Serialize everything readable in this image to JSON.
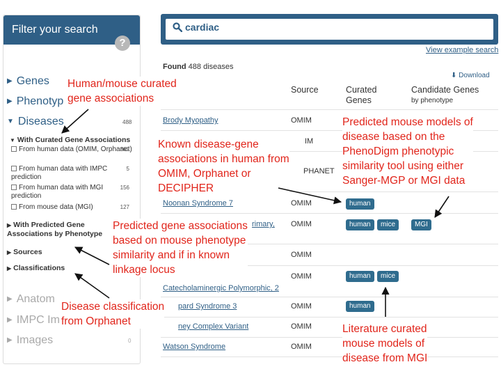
{
  "sidebar": {
    "title": "Filter your search",
    "help_glyph": "?",
    "facets": {
      "genes": "Genes",
      "phenotypes": "Phenotyp",
      "diseases": "Diseases",
      "diseases_count": "488",
      "anatomy": "Anatom",
      "impc_images": "IMPC Im",
      "images": "Images",
      "images_count": "0"
    },
    "curated_heading": "With Curated Gene Associations",
    "curated_options": [
      {
        "label": "From human data (OMIM, Orphanet)",
        "count": "362"
      },
      {
        "label": "From human data with IMPC prediction",
        "count": "5"
      },
      {
        "label": "From human data with MGI prediction",
        "count": "156"
      },
      {
        "label": "From mouse data (MGI)",
        "count": "127"
      }
    ],
    "predicted_heading": "With Predicted Gene Associations by Phenotype",
    "sources_label": "Sources",
    "classifications_label": "Classifications"
  },
  "search": {
    "query": "cardiac",
    "view_example": "View example search"
  },
  "results": {
    "found_prefix": "Found",
    "found_count": "488 diseases",
    "download_label": "Download"
  },
  "table": {
    "headers": {
      "source": "Source",
      "curated_genes": "Curated Genes",
      "candidate_genes": "Candidate Genes",
      "candidate_sub": "by phenotype"
    },
    "rows": [
      {
        "name": "Brody Myopathy",
        "source": "OMIM"
      },
      {
        "name": "",
        "source": "IM"
      },
      {
        "name": "",
        "source": "PHANET"
      },
      {
        "name": "Noonan Syndrome 7",
        "source": "OMIM",
        "curated": [
          "human"
        ]
      },
      {
        "name": "rimary,",
        "source": "OMIM",
        "curated": [
          "human",
          "mice"
        ],
        "candidate": [
          "MGI"
        ]
      },
      {
        "name": "",
        "source": "OMIM"
      },
      {
        "name": "Catecholaminergic Polymorphic, 2",
        "source": "OMIM",
        "curated": [
          "human",
          "mice"
        ]
      },
      {
        "name": "pard Syndrome 3",
        "source": "OMIM",
        "curated": [
          "human"
        ]
      },
      {
        "name": "ney Complex Variant",
        "source": "OMIM"
      },
      {
        "name": "Watson Syndrome",
        "source": "OMIM"
      }
    ]
  },
  "callouts": {
    "curated": [
      "Human/mouse curated",
      "gene associations"
    ],
    "known": [
      "Known disease-gene",
      "associations in human from",
      "OMIM, Orphanet or",
      "DECIPHER"
    ],
    "predicted_models": [
      "Predicted mouse models of",
      "disease based on the",
      "PhenoDigm phenotypic",
      "similarity tool using either",
      "Sanger-MGP or MGI data"
    ],
    "predicted_genes": [
      "Predicted gene associations",
      "based on mouse phenotype",
      "similarity and if in known",
      "linkage locus"
    ],
    "classification": [
      "Disease classification",
      "from Orphanet"
    ],
    "literature": [
      "Literature curated",
      "mouse models of",
      "disease from MGI"
    ]
  },
  "colors": {
    "accent": "#2f5f86",
    "badge": "#2f6c8e",
    "callout": "#e1251b"
  }
}
